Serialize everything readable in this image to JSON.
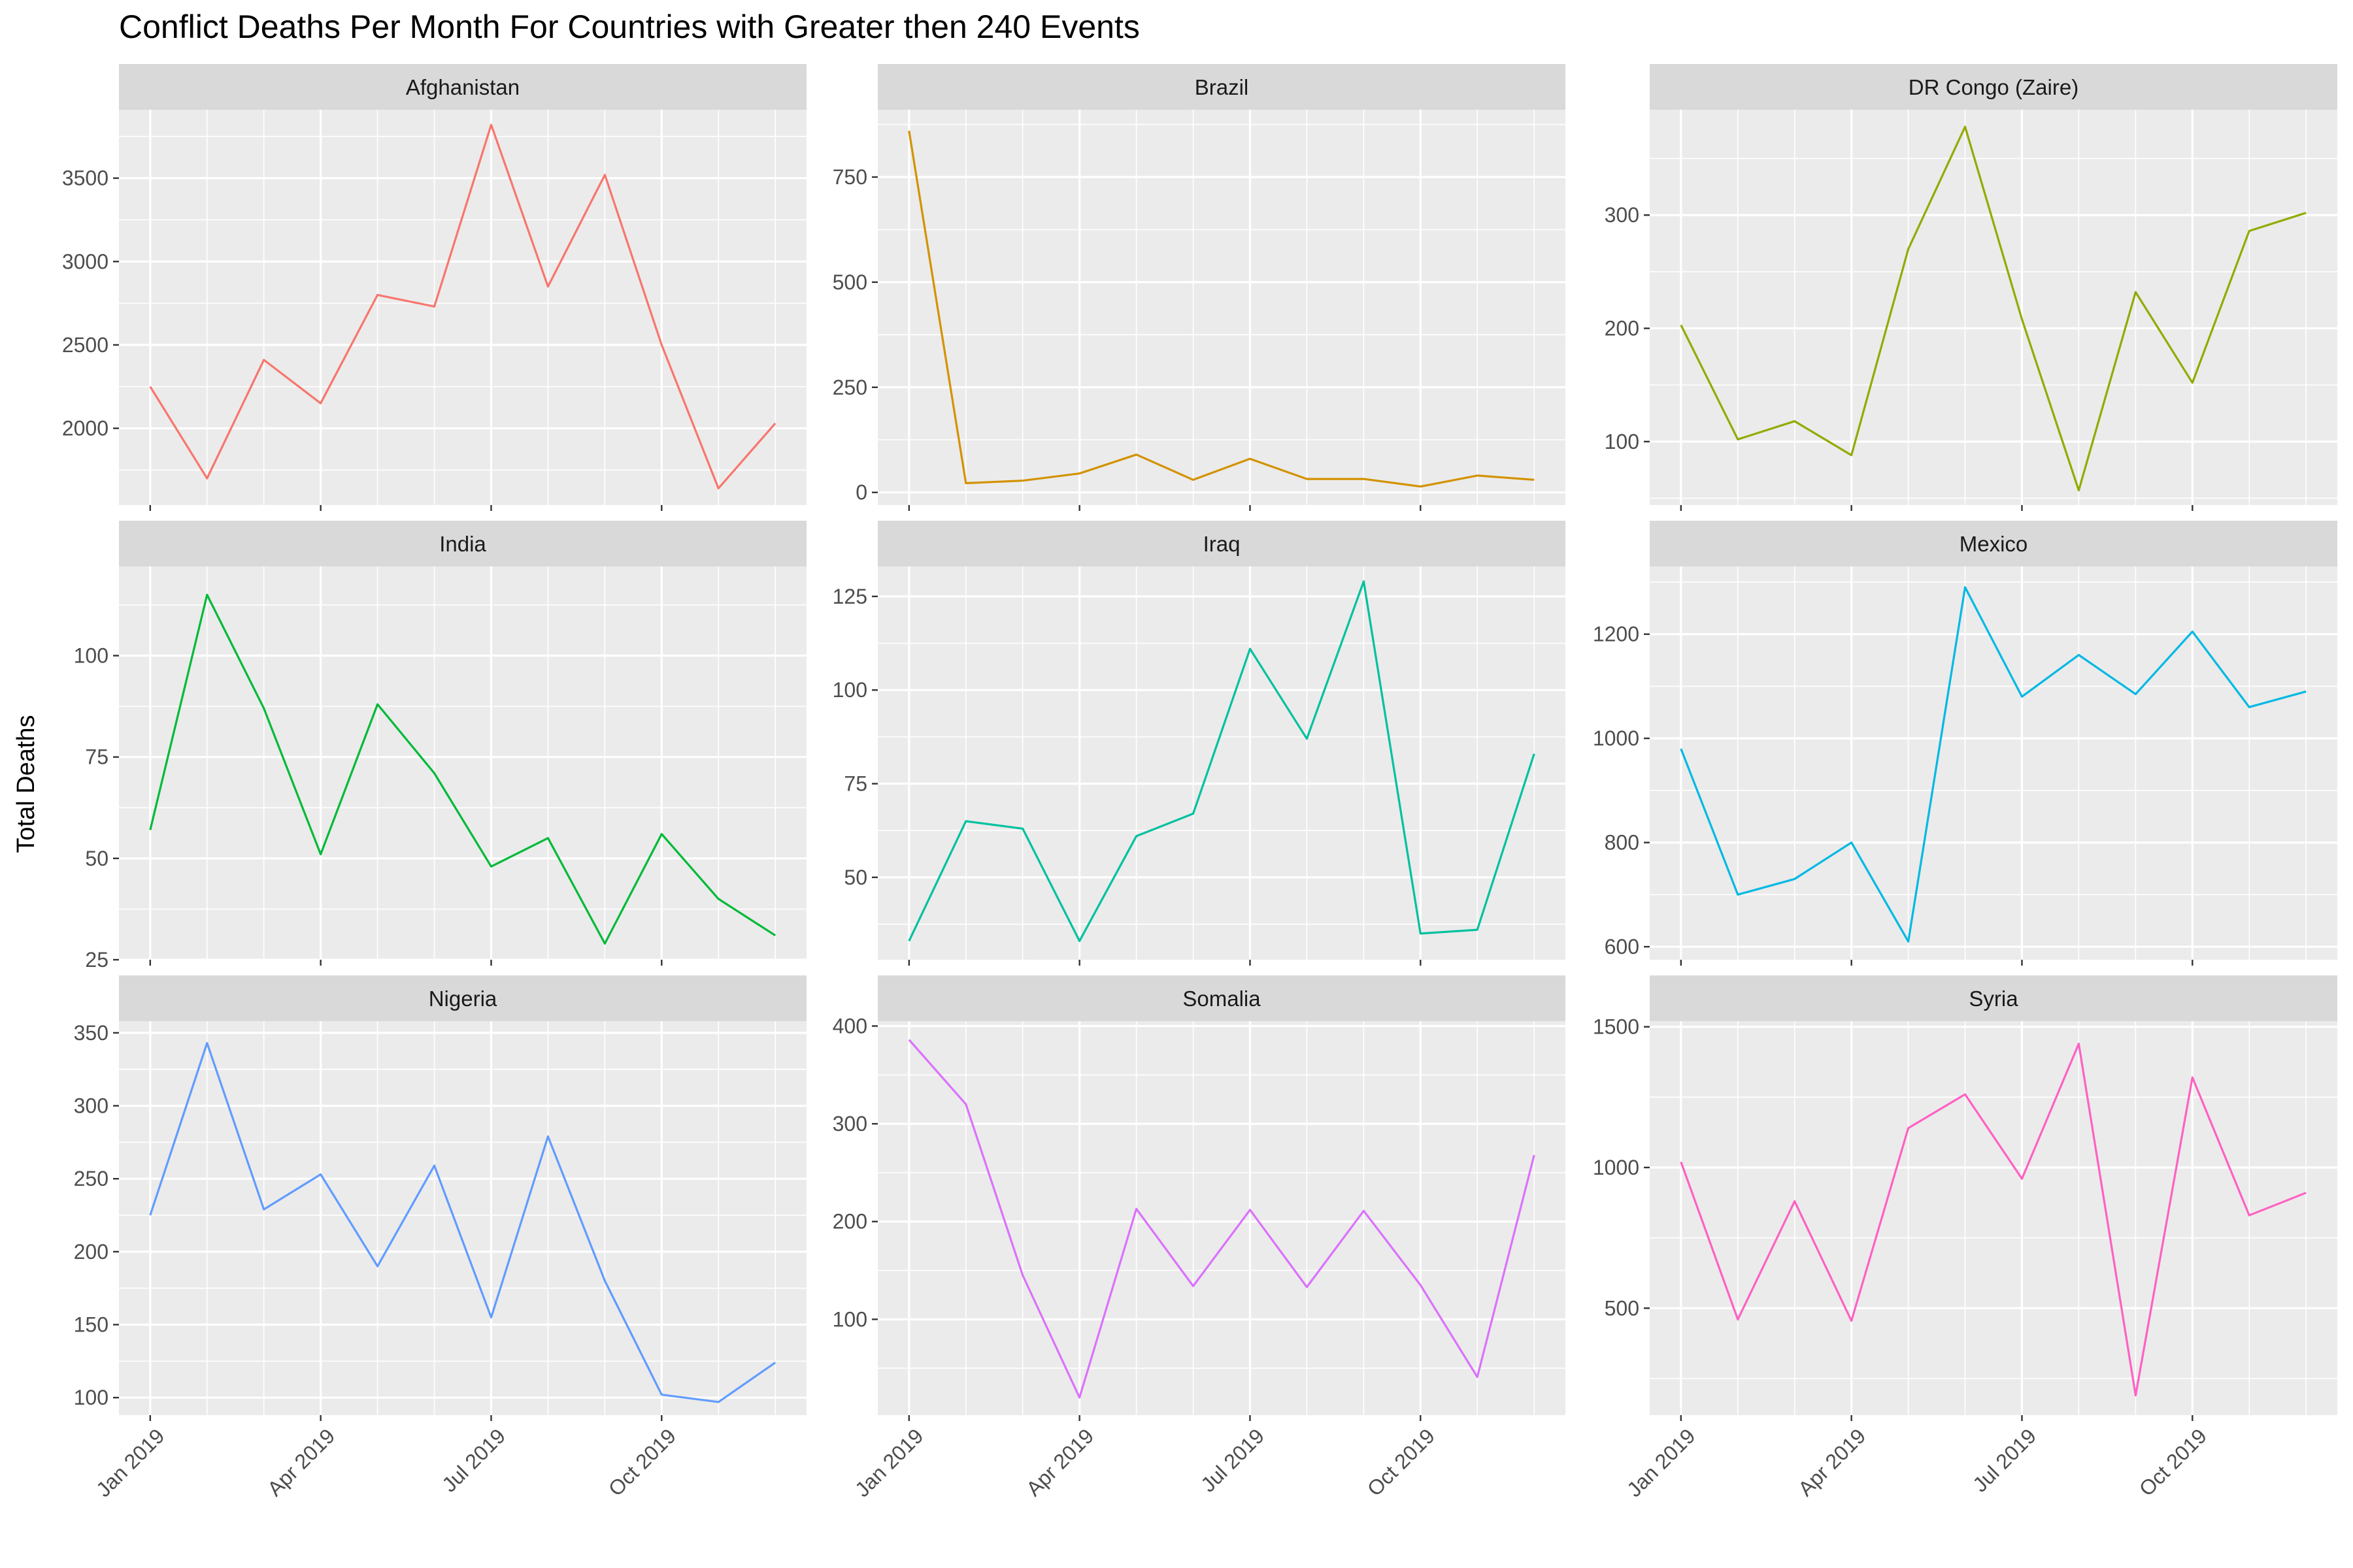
{
  "chart_data": {
    "type": "line",
    "title": "Conflict Deaths Per Month For Countries with Greater then 240 Events",
    "xlabel": "",
    "ylabel": "Total Deaths",
    "x": [
      "2019-01",
      "2019-02",
      "2019-03",
      "2019-04",
      "2019-05",
      "2019-06",
      "2019-07",
      "2019-08",
      "2019-09",
      "2019-10",
      "2019-11",
      "2019-12"
    ],
    "x_ticks": [
      "Jan 2019",
      "Apr 2019",
      "Jul 2019",
      "Oct 2019"
    ],
    "grid": true,
    "facets": [
      {
        "name": "Afghanistan",
        "color": "#F8766D",
        "ylim": [
          1540,
          3910
        ],
        "yticks": [
          2000,
          2500,
          3000,
          3500
        ],
        "values": [
          2250,
          1700,
          2410,
          2150,
          2800,
          2730,
          3820,
          2850,
          3520,
          2500,
          1640,
          2030
        ]
      },
      {
        "name": "Brazil",
        "color": "#D39200",
        "ylim": [
          -30,
          910
        ],
        "yticks": [
          0,
          250,
          500,
          750
        ],
        "values": [
          860,
          22,
          28,
          45,
          90,
          30,
          80,
          32,
          32,
          14,
          40,
          30
        ]
      },
      {
        "name": "DR Congo (Zaire)",
        "color": "#93AA00",
        "ylim": [
          44,
          393
        ],
        "yticks": [
          100,
          200,
          300
        ],
        "values": [
          203,
          102,
          118,
          88,
          270,
          378,
          208,
          57,
          232,
          152,
          286,
          302
        ]
      },
      {
        "name": "India",
        "color": "#00BA38",
        "ylim": [
          25,
          122
        ],
        "yticks": [
          25,
          50,
          75,
          100
        ],
        "values": [
          57,
          115,
          87,
          51,
          88,
          71,
          48,
          55,
          29,
          56,
          40,
          31
        ]
      },
      {
        "name": "Iraq",
        "color": "#00C19F",
        "ylim": [
          28,
          133
        ],
        "yticks": [
          50,
          75,
          100,
          125
        ],
        "values": [
          33,
          65,
          63,
          33,
          61,
          67,
          111,
          87,
          129,
          35,
          36,
          83
        ]
      },
      {
        "name": "Mexico",
        "color": "#00B9E3",
        "ylim": [
          575,
          1330
        ],
        "yticks": [
          600,
          800,
          1000,
          1200
        ],
        "values": [
          980,
          700,
          730,
          800,
          610,
          1290,
          1080,
          1160,
          1085,
          1205,
          1060,
          1090
        ]
      },
      {
        "name": "Nigeria",
        "color": "#619CFF",
        "ylim": [
          88,
          358
        ],
        "yticks": [
          100,
          150,
          200,
          250,
          300,
          350
        ],
        "values": [
          225,
          343,
          229,
          253,
          190,
          259,
          155,
          279,
          180,
          102,
          97,
          124
        ]
      },
      {
        "name": "Somalia",
        "color": "#DB72FB",
        "ylim": [
          2,
          405
        ],
        "yticks": [
          100,
          200,
          300,
          400
        ],
        "values": [
          386,
          320,
          145,
          20,
          213,
          134,
          212,
          133,
          211,
          135,
          41,
          268
        ]
      },
      {
        "name": "Syria",
        "color": "#FF61C3",
        "ylim": [
          120,
          1520
        ],
        "yticks": [
          500,
          1000,
          1500
        ],
        "values": [
          1020,
          460,
          880,
          455,
          1140,
          1260,
          960,
          1440,
          190,
          1320,
          830,
          910
        ]
      }
    ]
  }
}
